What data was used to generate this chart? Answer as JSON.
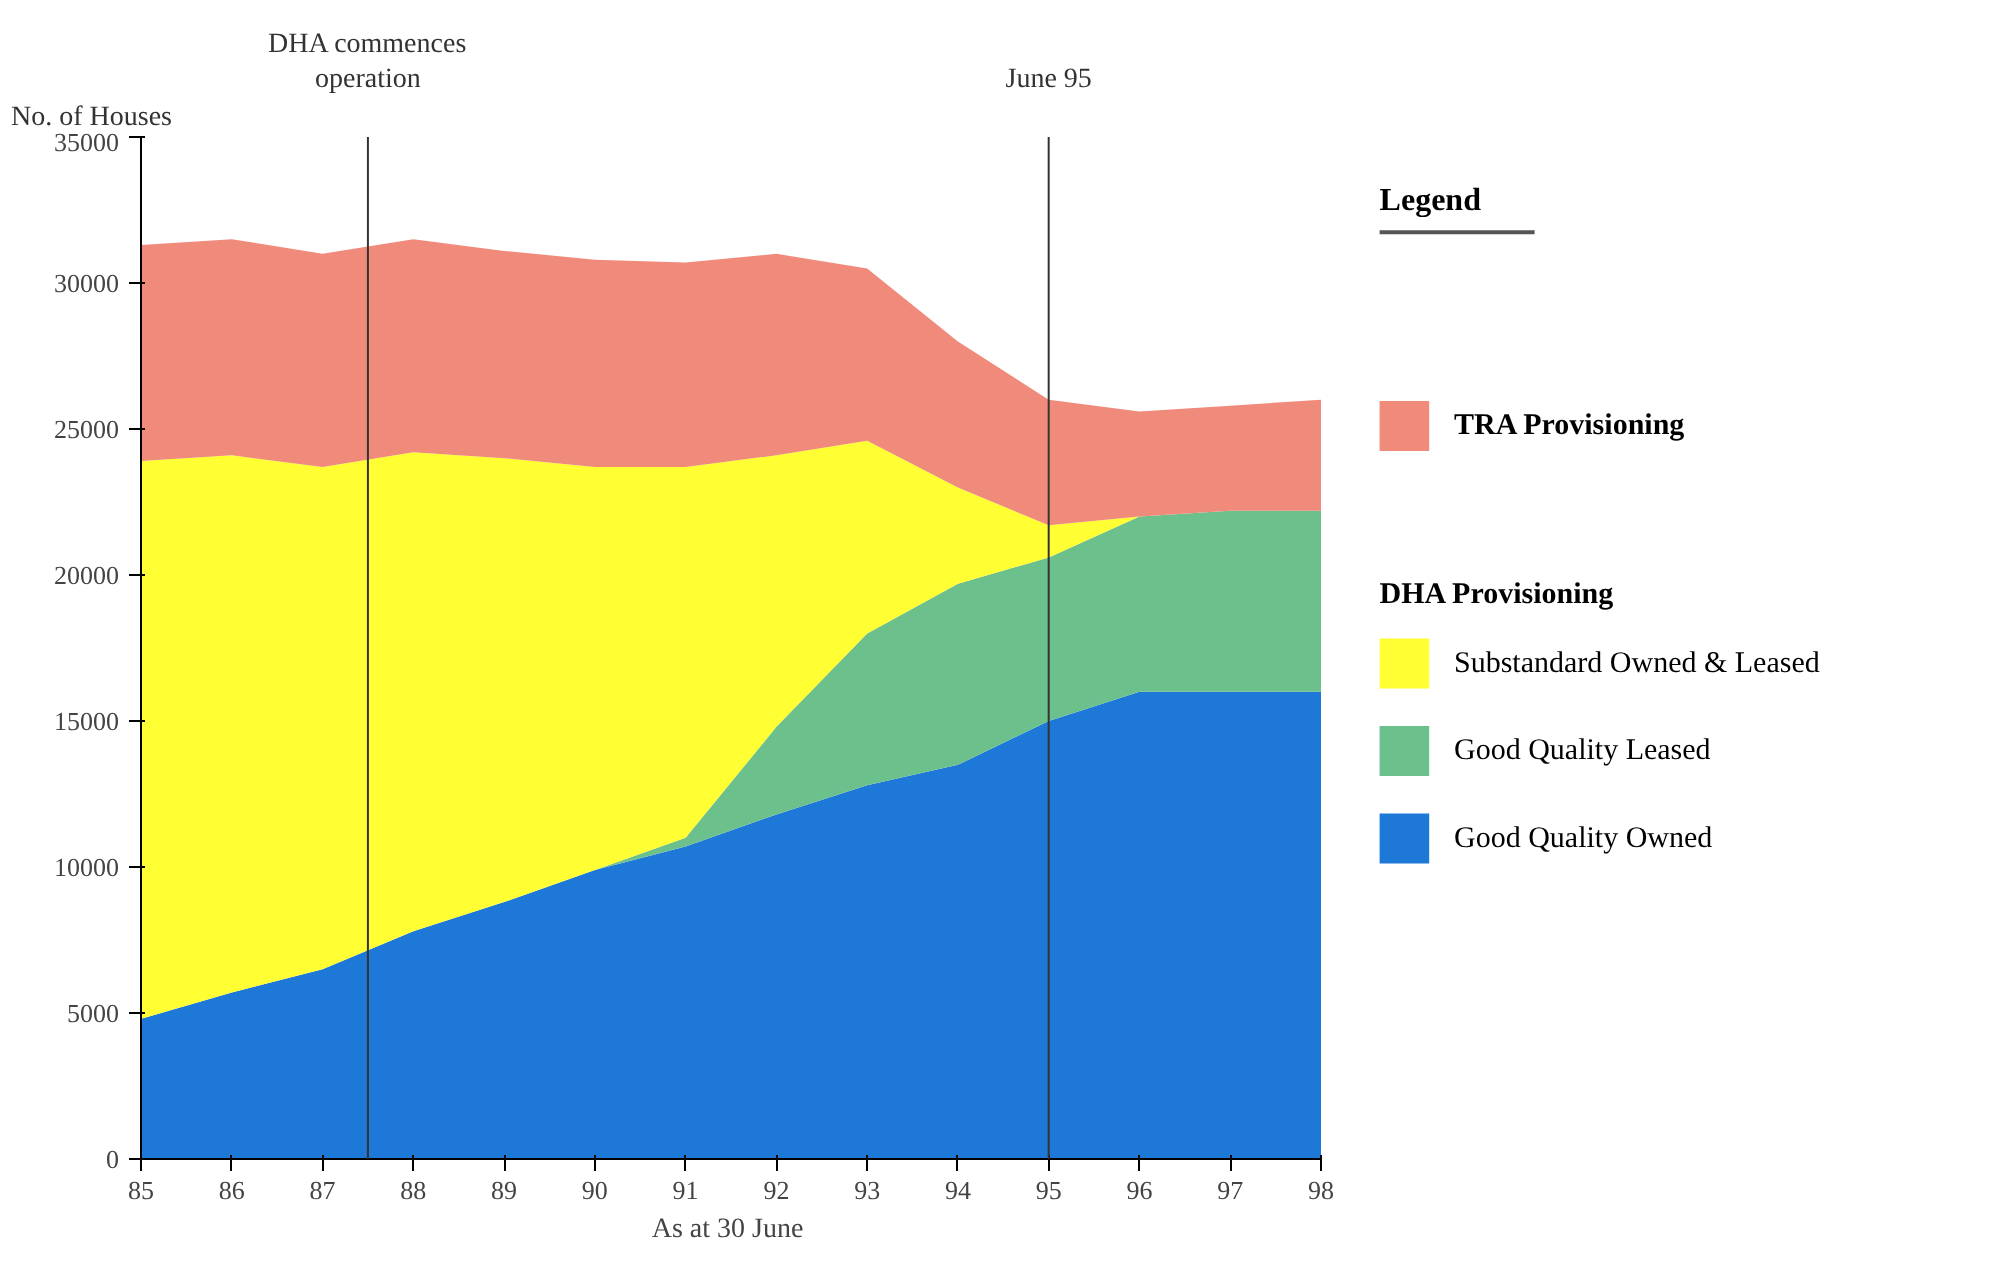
{
  "chart_data": {
    "type": "area",
    "stacked": true,
    "xlabel": "As at  30 June",
    "ylabel": "No. of Houses",
    "legend_title": "Legend",
    "legend": "right",
    "grid": false,
    "x": [
      85,
      86,
      87,
      88,
      89,
      90,
      91,
      92,
      93,
      94,
      95,
      96,
      97,
      98
    ],
    "xlim": [
      85,
      98
    ],
    "xticks": [
      85,
      86,
      87,
      88,
      89,
      90,
      91,
      92,
      93,
      94,
      95,
      96,
      97,
      98
    ],
    "ylim": [
      0,
      35000
    ],
    "yticks": [
      0,
      5000,
      10000,
      15000,
      20000,
      25000,
      30000,
      35000
    ],
    "series": [
      {
        "name": "Good Quality Owned",
        "color": "#1e78d8",
        "values": [
          4800,
          5700,
          6500,
          7800,
          8800,
          9900,
          10700,
          11800,
          12800,
          13500,
          15000,
          16000,
          16000,
          16000
        ]
      },
      {
        "name": "Good Quality Leased",
        "color": "#6cc08b",
        "values": [
          0,
          0,
          0,
          0,
          0,
          0,
          300,
          3000,
          5200,
          6200,
          5600,
          6000,
          6200,
          6200
        ]
      },
      {
        "name": "Substandard Owned & Leased",
        "color": "#ffff33",
        "values": [
          19100,
          18400,
          17200,
          16400,
          15200,
          13800,
          12700,
          9300,
          6600,
          3300,
          1100,
          0,
          0,
          0
        ]
      },
      {
        "name": "TRA Provisioning",
        "color": "#f08a7a",
        "values": [
          7400,
          7400,
          7300,
          7300,
          7100,
          7100,
          7000,
          6900,
          5900,
          5000,
          4300,
          3600,
          3600,
          3800
        ]
      }
    ],
    "ref_lines": [
      {
        "axis": "x",
        "value": 87.5,
        "label": "DHA commences\noperation",
        "color": "#333333"
      },
      {
        "axis": "x",
        "value": 95,
        "label": "June 95",
        "color": "#333333"
      }
    ],
    "annotations": [
      "DHA Provisioning"
    ]
  }
}
